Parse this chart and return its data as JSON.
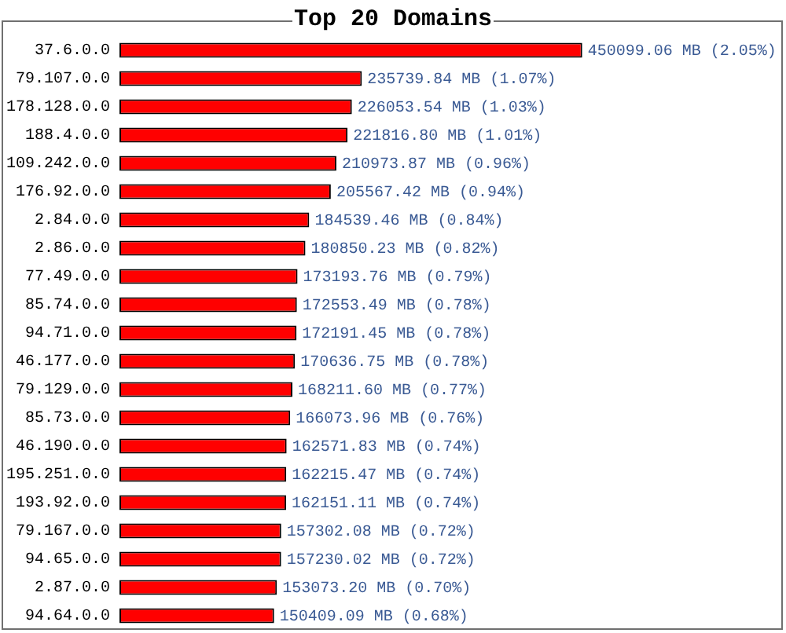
{
  "chart_data": {
    "type": "bar",
    "orientation": "horizontal",
    "title": "Top 20 Domains",
    "categories": [
      "37.6.0.0",
      "79.107.0.0",
      "178.128.0.0",
      "188.4.0.0",
      "109.242.0.0",
      "176.92.0.0",
      "2.84.0.0",
      "2.86.0.0",
      "77.49.0.0",
      "85.74.0.0",
      "94.71.0.0",
      "46.177.0.0",
      "79.129.0.0",
      "85.73.0.0",
      "46.190.0.0",
      "195.251.0.0",
      "193.92.0.0",
      "79.167.0.0",
      "94.65.0.0",
      "2.87.0.0",
      "94.64.0.0"
    ],
    "values": [
      450099.06,
      235739.84,
      226053.54,
      221816.8,
      210973.87,
      205567.42,
      184539.46,
      180850.23,
      173193.76,
      172553.49,
      172191.45,
      170636.75,
      168211.6,
      166073.96,
      162571.83,
      162215.47,
      162151.11,
      157302.08,
      157230.02,
      153073.2,
      150409.09
    ],
    "value_labels": [
      "450099.06 MB (2.05%)",
      "235739.84 MB (1.07%)",
      "226053.54 MB (1.03%)",
      "221816.80 MB (1.01%)",
      "210973.87 MB (0.96%)",
      "205567.42 MB (0.94%)",
      "184539.46 MB (0.84%)",
      "180850.23 MB (0.82%)",
      "173193.76 MB (0.79%)",
      "172553.49 MB (0.78%)",
      "172191.45 MB (0.78%)",
      "170636.75 MB (0.78%)",
      "168211.60 MB (0.77%)",
      "166073.96 MB (0.76%)",
      "162571.83 MB (0.74%)",
      "162215.47 MB (0.74%)",
      "162151.11 MB (0.74%)",
      "157302.08 MB (0.72%)",
      "157230.02 MB (0.72%)",
      "153073.20 MB (0.70%)",
      "150409.09 MB (0.68%)"
    ],
    "color": "#ff0000",
    "tick_labels": "y"
  }
}
